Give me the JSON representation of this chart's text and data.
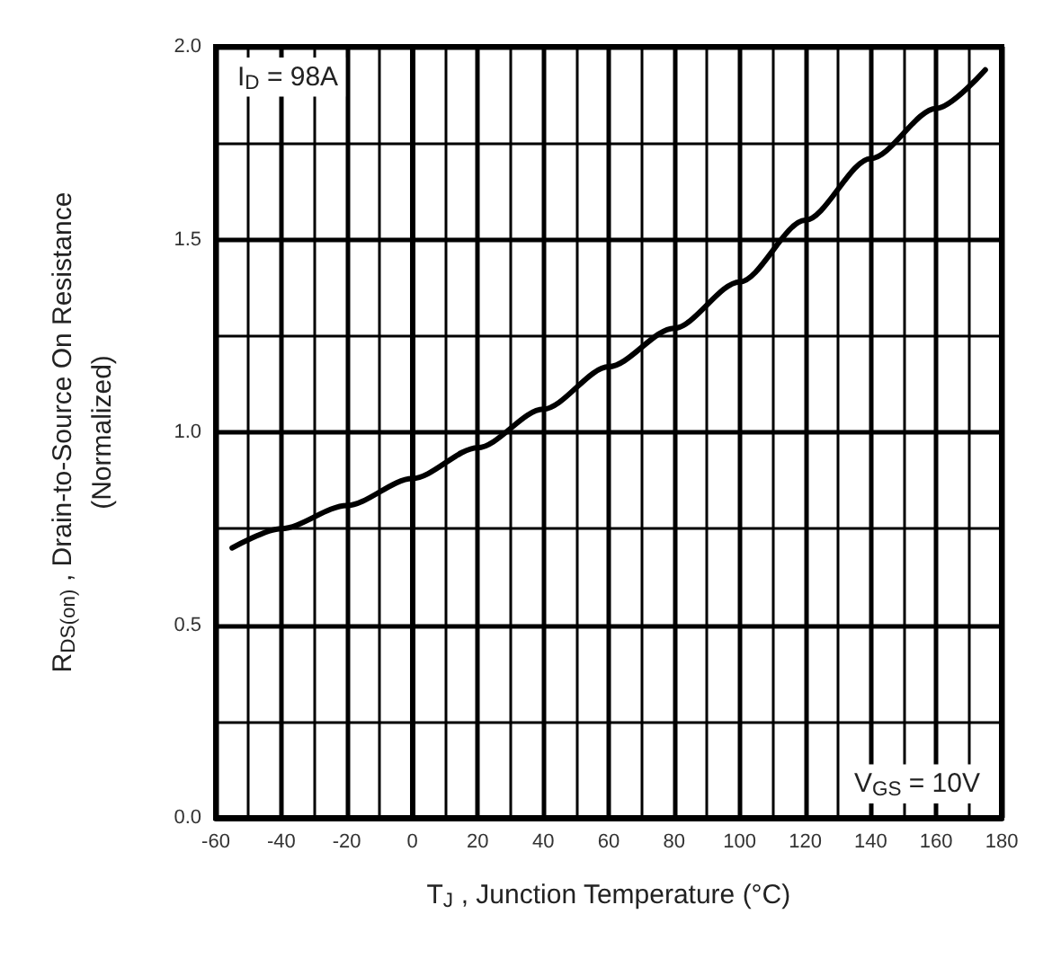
{
  "chart_data": {
    "type": "line",
    "xlabel": "T$_{J}$ , Junction Temperature (°C)",
    "ylabel": "R$_{DS(on)}$ , Drain-to-Source On Resistance\n(Normalized)",
    "x": [
      -55,
      -40,
      -20,
      0,
      20,
      40,
      60,
      80,
      100,
      120,
      140,
      160,
      175
    ],
    "series": [
      {
        "color": "#000000",
        "values": [
          0.7,
          0.75,
          0.81,
          0.88,
          0.96,
          1.06,
          1.17,
          1.27,
          1.39,
          1.55,
          1.71,
          1.84,
          1.94
        ]
      }
    ],
    "xlim": [
      -60,
      180
    ],
    "xticks": [
      -60,
      -40,
      -20,
      0,
      20,
      40,
      60,
      80,
      100,
      120,
      140,
      160,
      180
    ],
    "ylim": [
      0,
      2
    ],
    "yticks": [
      {
        "value": 0,
        "label": "0.0"
      },
      {
        "value": 0.5,
        "label": "0.5"
      },
      {
        "value": 1,
        "label": "1.0"
      },
      {
        "value": 1.5,
        "label": "1.5"
      },
      {
        "value": 2,
        "label": "2.0"
      }
    ],
    "annotations": [
      "I$_{D}$ = 98A",
      "V$_{GS}$ = 10V"
    ],
    "grid": true,
    "marker": "none",
    "line_style": "solid"
  }
}
